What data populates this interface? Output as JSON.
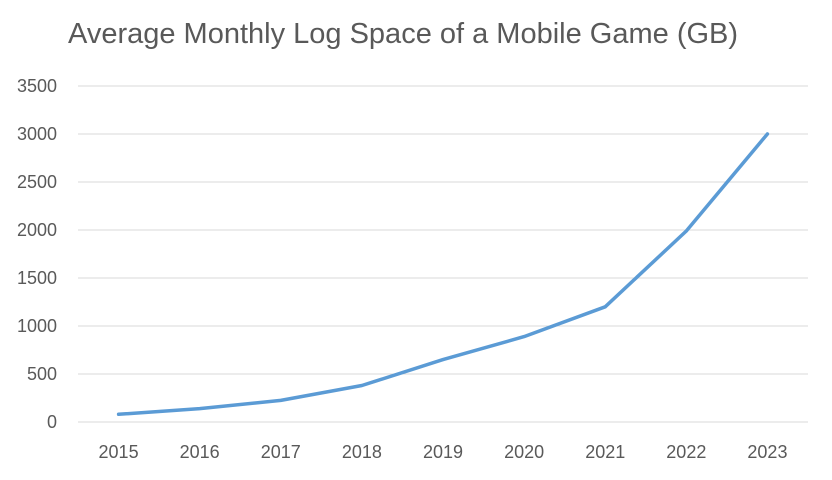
{
  "chart_data": {
    "type": "line",
    "title": "Average Monthly Log Space of a Mobile Game (GB)",
    "xlabel": "",
    "ylabel": "",
    "categories": [
      "2015",
      "2016",
      "2017",
      "2018",
      "2019",
      "2020",
      "2021",
      "2022",
      "2023"
    ],
    "series": [
      {
        "values": [
          80,
          140,
          225,
          380,
          650,
          890,
          1200,
          1990,
          3000
        ]
      }
    ],
    "ylim": [
      0,
      3500
    ],
    "yticks": [
      0,
      500,
      1000,
      1500,
      2000,
      2500,
      3000,
      3500
    ],
    "grid": true,
    "legend": "none",
    "colors": {
      "line": "#5B9BD5",
      "grid": "#D9D9D9",
      "text": "#595959"
    }
  }
}
